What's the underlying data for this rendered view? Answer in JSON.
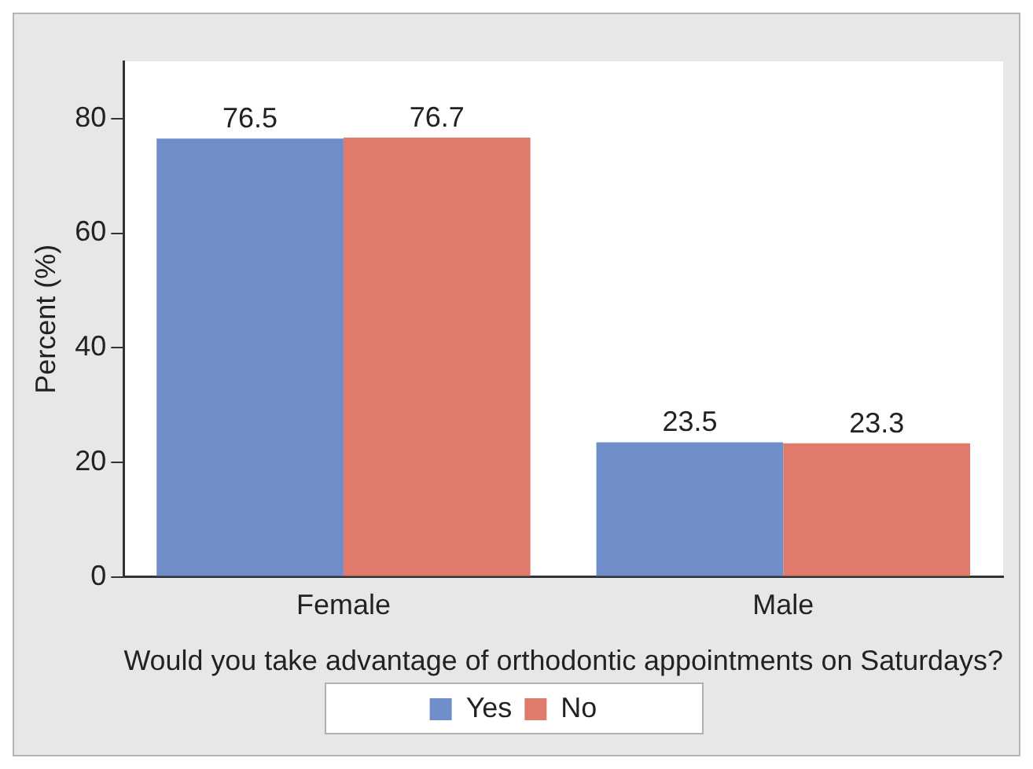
{
  "chart_data": {
    "type": "bar",
    "categories": [
      "Female",
      "Male"
    ],
    "series": [
      {
        "name": "Yes",
        "color": "#6f8dc8",
        "values": [
          76.5,
          23.5
        ]
      },
      {
        "name": "No",
        "color": "#e07b6c",
        "values": [
          76.7,
          23.3
        ]
      }
    ],
    "xlabel": "Would you take advantage of orthodontic appointments on Saturdays?",
    "ylabel": "Percent (%)",
    "ylim": [
      0,
      90
    ],
    "yticks": [
      0,
      20,
      40,
      60,
      80
    ],
    "grid": false,
    "legend": "bottom",
    "data_labels": true
  }
}
